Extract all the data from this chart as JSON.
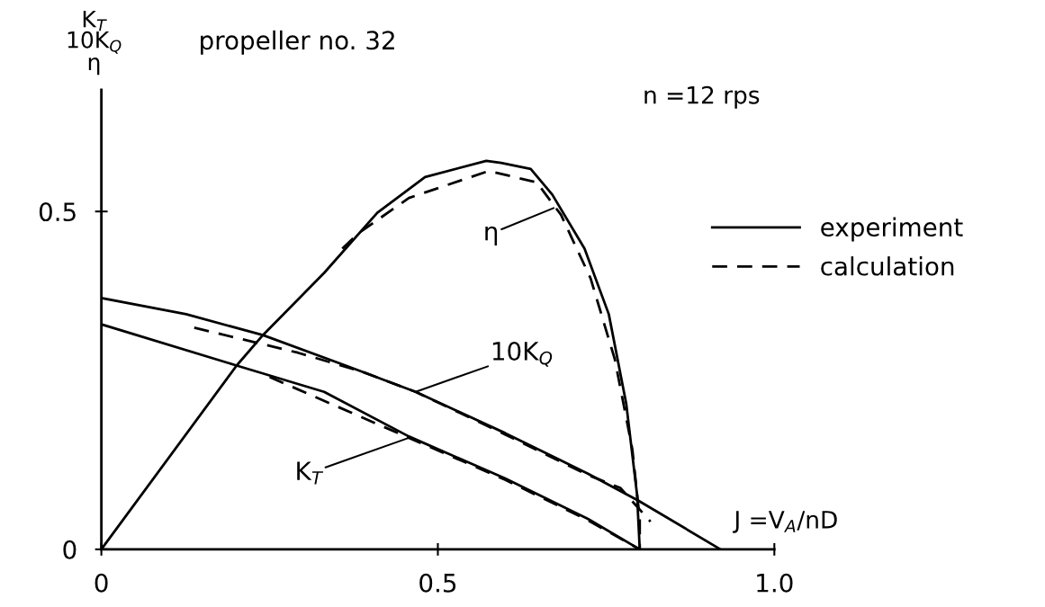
{
  "chart_data": {
    "type": "line",
    "title": "propeller no. 32",
    "xlabel": "J =V$_{A}$/nD",
    "ylabel": "K$_{T}$\n10K$_{Q}$\nη",
    "annotations": [
      {
        "text": "η",
        "x": 0.672,
        "y": 0.505
      },
      {
        "text": "10K$_{Q}$",
        "x": 0.467,
        "y": 0.233
      },
      {
        "text": "K$_{T}$",
        "x": 0.457,
        "y": 0.165
      },
      "n =12 rps"
    ],
    "series": [
      {
        "name": "experiment",
        "color": "#000000",
        "line_style": "solid",
        "x": [
          0,
          0.201,
          0.331,
          0.457,
          0.6,
          0.723,
          0.8
        ],
        "values": [
          0.333,
          0.272,
          0.233,
          0.167,
          0.105,
          0.045,
          0
        ]
      },
      {
        "color": "#000000",
        "line_style": "solid",
        "x": [
          0,
          0.126,
          0.24,
          0.363,
          0.467,
          0.6,
          0.723,
          0.798,
          0.92
        ],
        "values": [
          0.372,
          0.348,
          0.317,
          0.272,
          0.233,
          0.172,
          0.112,
          0.072,
          0
        ]
      },
      {
        "color": "#000000",
        "line_style": "solid",
        "x": [
          0,
          0.201,
          0.24,
          0.331,
          0.41,
          0.481,
          0.572,
          0.594,
          0.638,
          0.67,
          0.718,
          0.754,
          0.78,
          0.796,
          0.8
        ],
        "values": [
          0,
          0.272,
          0.317,
          0.409,
          0.498,
          0.551,
          0.575,
          0.572,
          0.563,
          0.525,
          0.445,
          0.348,
          0.215,
          0.081,
          0
        ]
      },
      {
        "name": "calculation",
        "color": "#000000",
        "line_style": "dashed",
        "x": [
          0.25,
          0.457,
          0.6,
          0.723,
          0.8
        ],
        "values": [
          0.255,
          0.165,
          0.103,
          0.043,
          0
        ]
      },
      {
        "color": "#000000",
        "line_style": "dashed",
        "x": [
          0.138,
          0.292,
          0.387,
          0.467,
          0.6,
          0.723,
          0.771,
          0.816
        ],
        "values": [
          0.328,
          0.291,
          0.263,
          0.233,
          0.17,
          0.11,
          0.091,
          0.041
        ]
      },
      {
        "color": "#000000",
        "line_style": "dashed",
        "x": [
          0.358,
          0.381,
          0.457,
          0.576,
          0.647,
          0.683,
          0.727,
          0.763,
          0.789,
          0.8,
          0.8
        ],
        "values": [
          0.445,
          0.467,
          0.52,
          0.56,
          0.543,
          0.495,
          0.401,
          0.281,
          0.148,
          0.045,
          0
        ]
      }
    ],
    "xlim": [
      0,
      1.0
    ],
    "ylim": [
      0,
      0.68
    ],
    "xticks": [
      0,
      0.5,
      {
        "value": 1,
        "label": "1.0"
      }
    ],
    "yticks": [
      0,
      0.5
    ],
    "grid": false,
    "legend": "right",
    "marker": "none"
  }
}
